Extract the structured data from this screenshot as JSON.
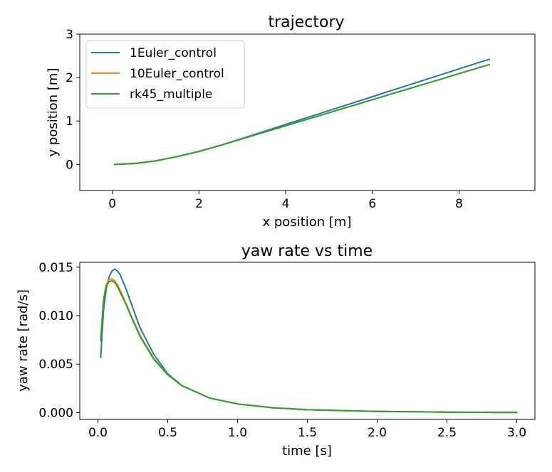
{
  "chart_data": [
    {
      "type": "line",
      "title": "trajectory",
      "xlabel": "x position [m]",
      "ylabel": "y position [m]",
      "xlim": [
        -0.75,
        9.75
      ],
      "ylim": [
        -0.6,
        3.0
      ],
      "xticks": [
        0,
        2,
        4,
        6,
        8
      ],
      "yticks": [
        0,
        1,
        2,
        3
      ],
      "grid": false,
      "legend": "upper-left",
      "series": [
        {
          "name": "1Euler_control",
          "color": "#1f77b4",
          "x": [
            0.05,
            0.5,
            1.0,
            1.5,
            2.0,
            2.5,
            3.0,
            3.5,
            4.0,
            4.5,
            5.0,
            5.5,
            6.0,
            6.5,
            7.0,
            7.5,
            8.0,
            8.5,
            8.7
          ],
          "y": [
            0.0,
            0.02,
            0.08,
            0.18,
            0.3,
            0.44,
            0.6,
            0.76,
            0.92,
            1.08,
            1.24,
            1.4,
            1.56,
            1.72,
            1.88,
            2.04,
            2.2,
            2.36,
            2.42
          ]
        },
        {
          "name": "10Euler_control",
          "color": "#ff7f0e",
          "x": [
            0.05,
            0.5,
            1.0,
            1.5,
            2.0,
            2.5,
            3.0,
            3.5,
            4.0,
            4.5,
            5.0,
            5.5,
            6.0,
            6.5,
            7.0,
            7.5,
            8.0,
            8.5,
            8.7
          ],
          "y": [
            0.0,
            0.02,
            0.08,
            0.18,
            0.3,
            0.44,
            0.59,
            0.74,
            0.89,
            1.04,
            1.19,
            1.34,
            1.49,
            1.64,
            1.79,
            1.94,
            2.09,
            2.24,
            2.3
          ]
        },
        {
          "name": "rk45_multiple",
          "color": "#2ca02c",
          "x": [
            0.05,
            0.5,
            1.0,
            1.5,
            2.0,
            2.5,
            3.0,
            3.5,
            4.0,
            4.5,
            5.0,
            5.5,
            6.0,
            6.5,
            7.0,
            7.5,
            8.0,
            8.5,
            8.7
          ],
          "y": [
            0.0,
            0.02,
            0.08,
            0.18,
            0.3,
            0.44,
            0.59,
            0.74,
            0.89,
            1.04,
            1.19,
            1.34,
            1.49,
            1.64,
            1.79,
            1.94,
            2.09,
            2.24,
            2.3
          ]
        }
      ]
    },
    {
      "type": "line",
      "title": "yaw rate vs time",
      "xlabel": "time [s]",
      "ylabel": "yaw rate [rad/s]",
      "xlim": [
        -0.13,
        3.13
      ],
      "ylim": [
        -0.0007,
        0.0155
      ],
      "xticks": [
        0.0,
        0.5,
        1.0,
        1.5,
        2.0,
        2.5,
        3.0
      ],
      "xtick_labels": [
        "0.0",
        "0.5",
        "1.0",
        "1.5",
        "2.0",
        "2.5",
        "3.0"
      ],
      "yticks": [
        0.0,
        0.005,
        0.01,
        0.015
      ],
      "ytick_labels": [
        "0.000",
        "0.005",
        "0.010",
        "0.015"
      ],
      "grid": false,
      "series": [
        {
          "name": "1Euler_control",
          "color": "#1f77b4",
          "x": [
            0.02,
            0.04,
            0.06,
            0.08,
            0.1,
            0.12,
            0.14,
            0.16,
            0.2,
            0.25,
            0.3,
            0.4,
            0.5,
            0.6,
            0.8,
            1.0,
            1.25,
            1.5,
            2.0,
            2.5,
            3.0
          ],
          "y": [
            0.0057,
            0.0105,
            0.0128,
            0.014,
            0.0146,
            0.0148,
            0.0146,
            0.0142,
            0.0128,
            0.0108,
            0.0088,
            0.006,
            0.004,
            0.0028,
            0.0015,
            0.0009,
            0.0005,
            0.0003,
            0.00012,
            5e-05,
            2e-05
          ]
        },
        {
          "name": "10Euler_control",
          "color": "#ff7f0e",
          "x": [
            0.02,
            0.04,
            0.06,
            0.08,
            0.1,
            0.12,
            0.14,
            0.16,
            0.2,
            0.25,
            0.3,
            0.4,
            0.5,
            0.6,
            0.8,
            1.0,
            1.25,
            1.5,
            2.0,
            2.5,
            3.0
          ],
          "y": [
            0.0075,
            0.0117,
            0.0132,
            0.0137,
            0.0138,
            0.0136,
            0.0132,
            0.0126,
            0.0113,
            0.0096,
            0.008,
            0.0056,
            0.0039,
            0.0028,
            0.0015,
            0.0009,
            0.0005,
            0.0003,
            0.00012,
            5e-05,
            2e-05
          ]
        },
        {
          "name": "rk45_multiple",
          "color": "#2ca02c",
          "x": [
            0.02,
            0.04,
            0.06,
            0.08,
            0.1,
            0.12,
            0.14,
            0.16,
            0.2,
            0.25,
            0.3,
            0.4,
            0.5,
            0.6,
            0.8,
            1.0,
            1.25,
            1.5,
            2.0,
            2.5,
            3.0
          ],
          "y": [
            0.0074,
            0.0115,
            0.013,
            0.0135,
            0.0136,
            0.0134,
            0.013,
            0.0124,
            0.0112,
            0.0095,
            0.0079,
            0.0055,
            0.0039,
            0.0028,
            0.0015,
            0.0009,
            0.0005,
            0.0003,
            0.00012,
            5e-05,
            2e-05
          ]
        }
      ]
    }
  ]
}
